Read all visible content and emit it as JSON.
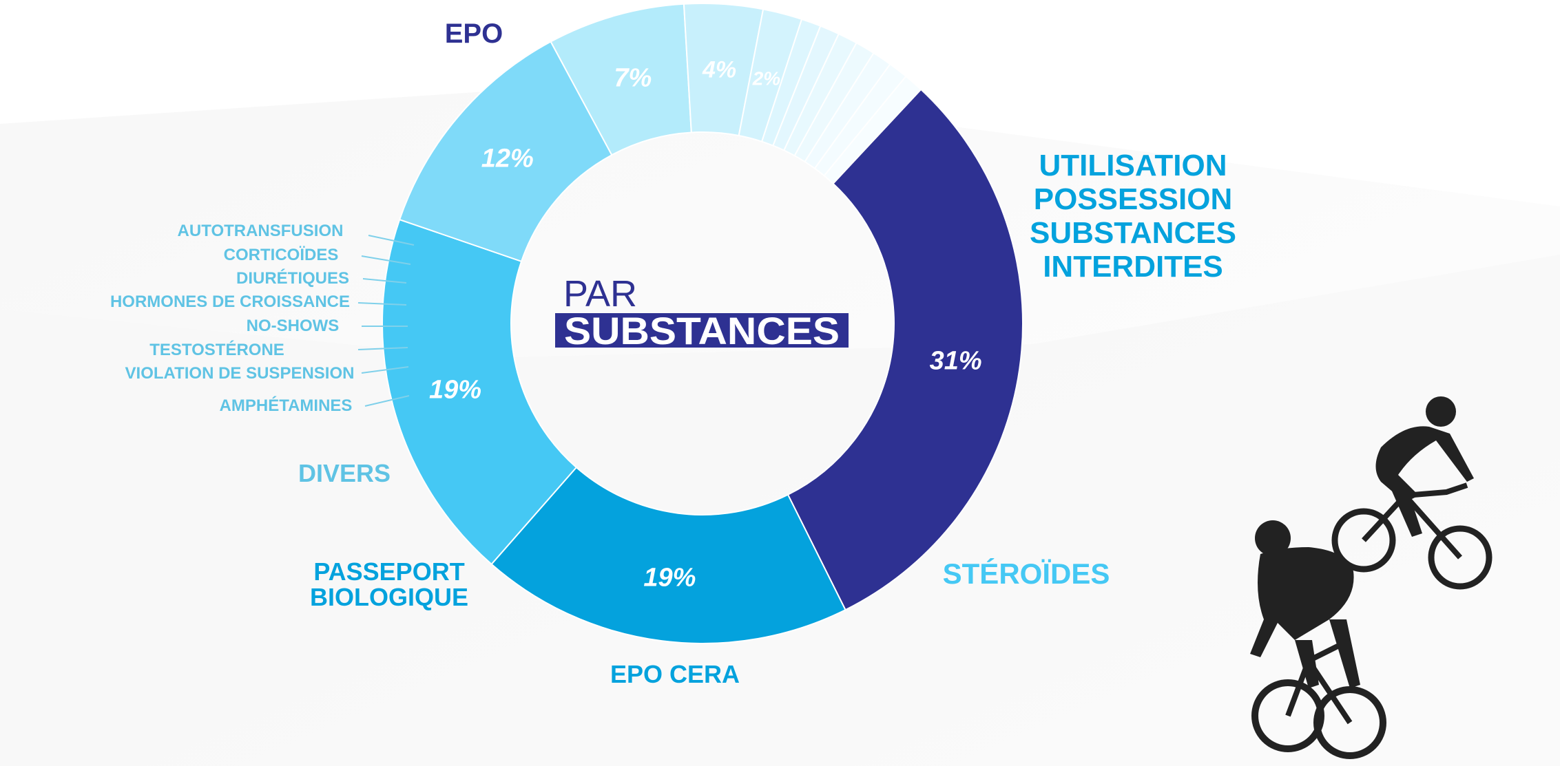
{
  "center_title": {
    "line1": "PAR",
    "line2": "SUBSTANCES"
  },
  "colors": {
    "navy": "#2e3192",
    "blue": "#04a2dd",
    "sky": "#45c8f4",
    "light": "#7fdaf9",
    "pale": "#b3ebfb",
    "paler": "#c8f0fc",
    "palest": "#dcf5fd",
    "faint": "#eaf9fe",
    "label_light": "#5fc3e4"
  },
  "chart_data": {
    "type": "donut",
    "title": "PAR SUBSTANCES",
    "unit": "%",
    "slices": [
      {
        "label": "EPO",
        "value": 31,
        "display": "31%",
        "color": "#2e3192"
      },
      {
        "label": "UTILISATION POSSESSION SUBSTANCES INTERDITES",
        "value": 19,
        "display": "19%",
        "color": "#04a2dd"
      },
      {
        "label": "STÉROÏDES",
        "value": 19,
        "display": "19%",
        "color": "#45c8f4"
      },
      {
        "label": "EPO CERA",
        "value": 12,
        "display": "12%",
        "color": "#7fdaf9"
      },
      {
        "label": "PASSEPORT BIOLOGIQUE",
        "value": 7,
        "display": "7%",
        "color": "#b3ebfb"
      },
      {
        "label": "DIVERS",
        "value": 4,
        "display": "4%",
        "color": "#c8f0fc"
      },
      {
        "label": "AMPHÉTAMINES",
        "value": 2,
        "display": "2%",
        "color": "#d3f3fd"
      },
      {
        "label": "VIOLATION DE SUSPENSION",
        "value": 1,
        "display": "",
        "color": "#ddf6fe"
      },
      {
        "label": "TESTOSTÉRONE",
        "value": 1,
        "display": "",
        "color": "#e3f7fe"
      },
      {
        "label": "NO-SHOWS",
        "value": 1,
        "display": "",
        "color": "#e8f9fe"
      },
      {
        "label": "HORMONES DE CROISSANCE",
        "value": 1,
        "display": "",
        "color": "#edfafe"
      },
      {
        "label": "DIURÉTIQUES",
        "value": 1,
        "display": "",
        "color": "#f1fbff"
      },
      {
        "label": "CORTICOÏDES",
        "value": 1,
        "display": "",
        "color": "#f4fcff"
      },
      {
        "label": "AUTOTRANSFUSION",
        "value": 1,
        "display": "",
        "color": "#f7fdff"
      }
    ]
  }
}
